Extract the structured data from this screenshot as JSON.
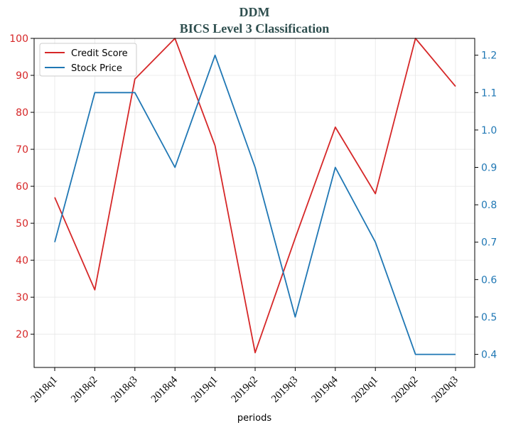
{
  "chart_data": {
    "type": "line",
    "title": "DDM",
    "subtitle": "BICS Level 3 Classification",
    "xlabel": "periods",
    "categories": [
      "2018q1",
      "2018q2",
      "2018q3",
      "2018q4",
      "2019q1",
      "2019q2",
      "2019q3",
      "2019q4",
      "2020q1",
      "2020q2",
      "2020q3"
    ],
    "series": [
      {
        "name": "Credit Score",
        "axis": "left",
        "color": "#d62728",
        "values": [
          57,
          32,
          89,
          100,
          71,
          15,
          46,
          76,
          58,
          100,
          87
        ]
      },
      {
        "name": "Stock Price",
        "axis": "right",
        "color": "#1f77b4",
        "values": [
          0.7,
          1.1,
          1.1,
          0.9,
          1.2,
          0.9,
          0.5,
          0.9,
          0.7,
          0.4,
          0.4
        ]
      }
    ],
    "y_left": {
      "range": [
        11,
        100
      ],
      "ticks": [
        20,
        30,
        40,
        50,
        60,
        70,
        80,
        90,
        100
      ]
    },
    "y_right": {
      "range": [
        0.365,
        1.245
      ],
      "ticks": [
        "0.4",
        "0.5",
        "0.6",
        "0.7",
        "0.8",
        "0.9",
        "1.0",
        "1.1",
        "1.2"
      ]
    },
    "grid": true,
    "legend_position": "top-left"
  }
}
